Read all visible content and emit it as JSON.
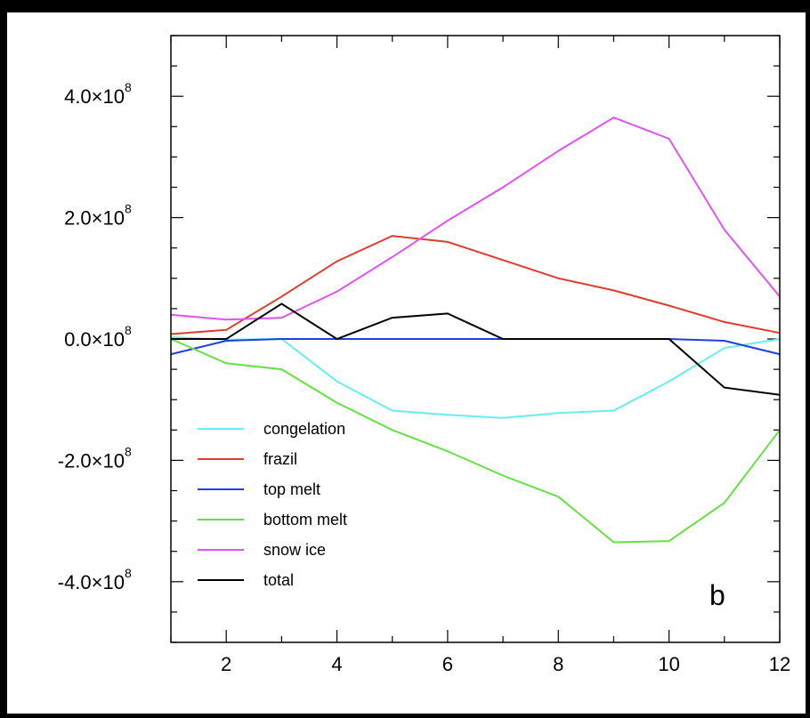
{
  "chart_data": {
    "type": "line",
    "panel_label": "b",
    "title": "",
    "xlabel": "",
    "ylabel": "",
    "x": [
      1,
      2,
      3,
      4,
      5,
      6,
      7,
      8,
      9,
      10,
      11,
      12
    ],
    "xlim": [
      1,
      12
    ],
    "ylim": [
      -500000000.0,
      500000000.0
    ],
    "x_ticks": [
      2,
      4,
      6,
      8,
      10,
      12
    ],
    "y_ticks": [
      -400000000.0,
      -200000000.0,
      0,
      200000000.0,
      400000000.0
    ],
    "y_tick_labels": [
      {
        "mantissa": "-4.0",
        "base": "10",
        "exp": "8"
      },
      {
        "mantissa": "-2.0",
        "base": "10",
        "exp": "8"
      },
      {
        "mantissa": "0.0",
        "base": "10",
        "exp": "8"
      },
      {
        "mantissa": "2.0",
        "base": "10",
        "exp": "8"
      },
      {
        "mantissa": "4.0",
        "base": "10",
        "exp": "8"
      }
    ],
    "grid": false,
    "legend_position": "bottom-left",
    "series": [
      {
        "name": "congelation",
        "color": "#66eeee",
        "values": [
          3000000.0,
          -1000000.0,
          0.0,
          -70000000.0,
          -118000000.0,
          -125000000.0,
          -130000000.0,
          -122000000.0,
          -118000000.0,
          -70000000.0,
          -15000000.0,
          0.0
        ]
      },
      {
        "name": "frazil",
        "color": "#e03c2c",
        "values": [
          8000000.0,
          15000000.0,
          70000000.0,
          128000000.0,
          170000000.0,
          160000000.0,
          130000000.0,
          100000000.0,
          80000000.0,
          55000000.0,
          28000000.0,
          10000000.0
        ]
      },
      {
        "name": "top melt",
        "color": "#1e40e0",
        "values": [
          -25000000.0,
          -3000000.0,
          0.0,
          0.0,
          0.0,
          0.0,
          0.0,
          0.0,
          0.0,
          0.0,
          -3000000.0,
          -25000000.0
        ]
      },
      {
        "name": "bottom melt",
        "color": "#66e044",
        "values": [
          0.0,
          -40000000.0,
          -50000000.0,
          -105000000.0,
          -150000000.0,
          -185000000.0,
          -225000000.0,
          -260000000.0,
          -335000000.0,
          -333000000.0,
          -270000000.0,
          -150000000.0
        ]
      },
      {
        "name": "snow ice",
        "color": "#dd55ee",
        "values": [
          40000000.0,
          32000000.0,
          35000000.0,
          78000000.0,
          135000000.0,
          195000000.0,
          250000000.0,
          310000000.0,
          365000000.0,
          330000000.0,
          180000000.0,
          70000000.0
        ]
      },
      {
        "name": "total",
        "color": "#000000",
        "values": [
          0.0,
          0.0,
          58000000.0,
          0.0,
          35000000.0,
          42000000.0,
          0.0,
          0.0,
          0.0,
          0.0,
          -80000000.0,
          -92000000.0
        ]
      }
    ]
  }
}
